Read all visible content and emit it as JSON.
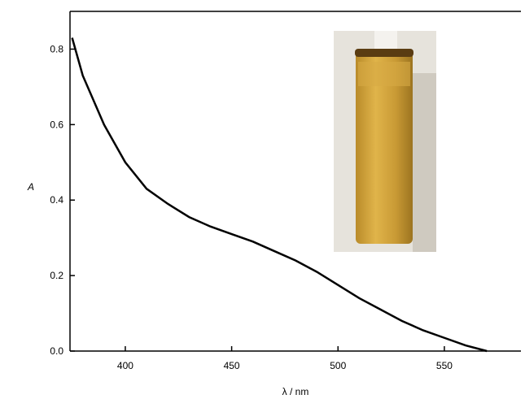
{
  "chart_data": {
    "type": "line",
    "x_label": "λ / nm",
    "y_label": "A",
    "x": [
      375,
      380,
      390,
      400,
      410,
      420,
      430,
      440,
      450,
      460,
      470,
      480,
      490,
      500,
      510,
      520,
      530,
      540,
      550,
      560,
      570
    ],
    "series": [
      {
        "color": "#000000",
        "values": [
          0.83,
          0.73,
          0.6,
          0.5,
          0.43,
          0.39,
          0.355,
          0.33,
          0.31,
          0.29,
          0.265,
          0.24,
          0.21,
          0.175,
          0.14,
          0.11,
          0.08,
          0.055,
          0.035,
          0.015,
          0.0
        ]
      }
    ],
    "xlim": [
      374,
      586
    ],
    "xticks": [
      400,
      450,
      500,
      550
    ],
    "ylim": [
      0,
      0.9
    ],
    "yticks": [
      {
        "value": 0,
        "label": "0.0"
      },
      0.2,
      0.4,
      0.6,
      0.8
    ]
  }
}
